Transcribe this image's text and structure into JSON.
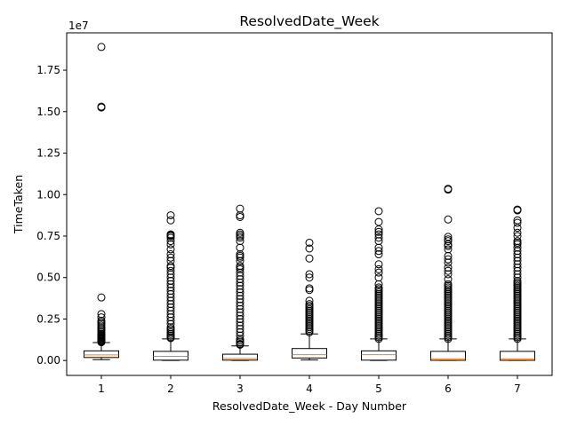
{
  "chart_data": {
    "type": "boxplot",
    "title": "ResolvedDate_Week",
    "xlabel": "ResolvedDate_Week - Day Number",
    "ylabel": "TimeTaken",
    "y_offset_label": "1e7",
    "y_scale": 10000000,
    "ylim": [
      -0.09,
      1.975
    ],
    "yticks": [
      0.0,
      0.25,
      0.5,
      0.75,
      1.0,
      1.25,
      1.5,
      1.75
    ],
    "ytick_labels": [
      "0.00",
      "0.25",
      "0.50",
      "0.75",
      "1.00",
      "1.25",
      "1.50",
      "1.75"
    ],
    "categories": [
      "1",
      "2",
      "3",
      "4",
      "5",
      "6",
      "7"
    ],
    "boxes": [
      {
        "label": "1",
        "whislo": 0.005,
        "q1": 0.018,
        "med": 0.034,
        "q3": 0.058,
        "whishi": 0.108,
        "fliers": [
          1.89,
          1.53,
          1.525,
          0.38,
          0.28,
          0.26,
          0.24,
          0.23,
          0.22,
          0.21,
          0.2,
          0.19,
          0.18,
          0.17,
          0.16,
          0.155,
          0.15,
          0.145,
          0.14,
          0.135,
          0.13,
          0.125,
          0.12,
          0.115,
          0.11
        ]
      },
      {
        "label": "2",
        "whislo": 0.0,
        "q1": 0.002,
        "med": 0.025,
        "q3": 0.055,
        "whishi": 0.13,
        "fliers": [
          0.875,
          0.845,
          0.76,
          0.755,
          0.75,
          0.74,
          0.72,
          0.7,
          0.67,
          0.64,
          0.62,
          0.6,
          0.57,
          0.56,
          0.54,
          0.52,
          0.5,
          0.48,
          0.46,
          0.44,
          0.42,
          0.4,
          0.38,
          0.36,
          0.34,
          0.32,
          0.3,
          0.28,
          0.26,
          0.24,
          0.22,
          0.2,
          0.19,
          0.18,
          0.17,
          0.16,
          0.15,
          0.14,
          0.135
        ]
      },
      {
        "label": "3",
        "whislo": 0.0,
        "q1": 0.002,
        "med": 0.012,
        "q3": 0.038,
        "whishi": 0.088,
        "fliers": [
          0.915,
          0.875,
          0.865,
          0.77,
          0.76,
          0.75,
          0.74,
          0.72,
          0.68,
          0.64,
          0.63,
          0.62,
          0.6,
          0.57,
          0.56,
          0.55,
          0.53,
          0.51,
          0.49,
          0.47,
          0.45,
          0.43,
          0.41,
          0.39,
          0.37,
          0.35,
          0.33,
          0.31,
          0.29,
          0.27,
          0.25,
          0.23,
          0.21,
          0.19,
          0.17,
          0.15,
          0.13,
          0.12,
          0.11,
          0.1,
          0.095
        ]
      },
      {
        "label": "4",
        "whislo": 0.003,
        "q1": 0.015,
        "med": 0.035,
        "q3": 0.072,
        "whishi": 0.16,
        "fliers": [
          0.71,
          0.675,
          0.615,
          0.52,
          0.5,
          0.435,
          0.425,
          0.36,
          0.34,
          0.33,
          0.32,
          0.31,
          0.3,
          0.29,
          0.28,
          0.27,
          0.26,
          0.25,
          0.24,
          0.23,
          0.22,
          0.21,
          0.2,
          0.19,
          0.18,
          0.17
        ]
      },
      {
        "label": "5",
        "whislo": 0.0,
        "q1": 0.002,
        "med": 0.035,
        "q3": 0.058,
        "whishi": 0.13,
        "fliers": [
          0.9,
          0.835,
          0.79,
          0.775,
          0.76,
          0.74,
          0.72,
          0.68,
          0.66,
          0.64,
          0.58,
          0.55,
          0.53,
          0.5,
          0.46,
          0.44,
          0.43,
          0.42,
          0.41,
          0.4,
          0.39,
          0.38,
          0.37,
          0.36,
          0.35,
          0.34,
          0.33,
          0.32,
          0.31,
          0.3,
          0.29,
          0.28,
          0.27,
          0.26,
          0.25,
          0.24,
          0.23,
          0.22,
          0.21,
          0.2,
          0.19,
          0.18,
          0.17,
          0.16,
          0.15,
          0.14,
          0.13
        ]
      },
      {
        "label": "6",
        "whislo": 0.0,
        "q1": 0.001,
        "med": 0.01,
        "q3": 0.055,
        "whishi": 0.13,
        "fliers": [
          1.035,
          1.03,
          0.85,
          0.745,
          0.73,
          0.72,
          0.7,
          0.69,
          0.67,
          0.63,
          0.61,
          0.59,
          0.56,
          0.54,
          0.52,
          0.49,
          0.46,
          0.45,
          0.44,
          0.43,
          0.42,
          0.41,
          0.4,
          0.39,
          0.38,
          0.37,
          0.36,
          0.35,
          0.34,
          0.33,
          0.32,
          0.31,
          0.3,
          0.29,
          0.28,
          0.27,
          0.26,
          0.25,
          0.24,
          0.23,
          0.22,
          0.21,
          0.2,
          0.19,
          0.18,
          0.17,
          0.16,
          0.15,
          0.14,
          0.13
        ]
      },
      {
        "label": "7",
        "whislo": 0.0,
        "q1": 0.001,
        "med": 0.01,
        "q3": 0.055,
        "whishi": 0.13,
        "fliers": [
          0.91,
          0.905,
          0.845,
          0.83,
          0.8,
          0.77,
          0.75,
          0.72,
          0.71,
          0.7,
          0.68,
          0.66,
          0.64,
          0.62,
          0.6,
          0.58,
          0.56,
          0.54,
          0.52,
          0.5,
          0.48,
          0.47,
          0.46,
          0.45,
          0.44,
          0.43,
          0.42,
          0.41,
          0.4,
          0.39,
          0.38,
          0.37,
          0.36,
          0.35,
          0.34,
          0.33,
          0.32,
          0.31,
          0.3,
          0.29,
          0.28,
          0.27,
          0.26,
          0.25,
          0.24,
          0.23,
          0.22,
          0.21,
          0.2,
          0.19,
          0.18,
          0.17,
          0.16,
          0.15,
          0.14,
          0.13
        ]
      }
    ],
    "grid": false,
    "legend": "none",
    "colors": {
      "box": "#000000",
      "median": "#ff7f0e",
      "flier": "#000000"
    }
  }
}
